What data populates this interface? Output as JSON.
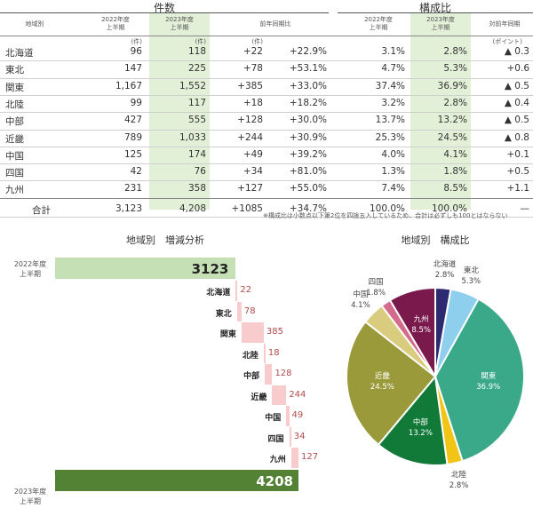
{
  "table": {
    "title_count": "件数",
    "title_share": "構成比",
    "headers": {
      "region": "地域別",
      "fy2022": [
        "2022年度",
        "上半期"
      ],
      "fy2023": [
        "2023年度",
        "上半期"
      ],
      "yoy": "前年同期比",
      "share2022": [
        "2022年度",
        "上半期"
      ],
      "share2023": [
        "2023年度",
        "上半期"
      ],
      "share_yoy": "対前年同期"
    },
    "units": {
      "u2022": "(件)",
      "u2023": "(件)",
      "udiff": "(件)",
      "upoint": "(ポイント)"
    },
    "rows": [
      {
        "region": "北海道",
        "c2022": "96",
        "c2023": "118",
        "diff": "+22",
        "pct": "+22.9%",
        "s2022": "3.1%",
        "s2023": "2.8%",
        "spt": "▲ 0.3"
      },
      {
        "region": "東北",
        "c2022": "147",
        "c2023": "225",
        "diff": "+78",
        "pct": "+53.1%",
        "s2022": "4.7%",
        "s2023": "5.3%",
        "spt": "+0.6"
      },
      {
        "region": "関東",
        "c2022": "1,167",
        "c2023": "1,552",
        "diff": "+385",
        "pct": "+33.0%",
        "s2022": "37.4%",
        "s2023": "36.9%",
        "spt": "▲ 0.5"
      },
      {
        "region": "北陸",
        "c2022": "99",
        "c2023": "117",
        "diff": "+18",
        "pct": "+18.2%",
        "s2022": "3.2%",
        "s2023": "2.8%",
        "spt": "▲ 0.4"
      },
      {
        "region": "中部",
        "c2022": "427",
        "c2023": "555",
        "diff": "+128",
        "pct": "+30.0%",
        "s2022": "13.7%",
        "s2023": "13.2%",
        "spt": "▲ 0.5"
      },
      {
        "region": "近畿",
        "c2022": "789",
        "c2023": "1,033",
        "diff": "+244",
        "pct": "+30.9%",
        "s2022": "25.3%",
        "s2023": "24.5%",
        "spt": "▲ 0.8"
      },
      {
        "region": "中国",
        "c2022": "125",
        "c2023": "174",
        "diff": "+49",
        "pct": "+39.2%",
        "s2022": "4.0%",
        "s2023": "4.1%",
        "spt": "+0.1"
      },
      {
        "region": "四国",
        "c2022": "42",
        "c2023": "76",
        "diff": "+34",
        "pct": "+81.0%",
        "s2022": "1.3%",
        "s2023": "1.8%",
        "spt": "+0.5"
      },
      {
        "region": "九州",
        "c2022": "231",
        "c2023": "358",
        "diff": "+127",
        "pct": "+55.0%",
        "s2022": "7.4%",
        "s2023": "8.5%",
        "spt": "+1.1"
      }
    ],
    "total": {
      "region": "合計",
      "c2022": "3,123",
      "c2023": "4,208",
      "diff": "+1085",
      "pct": "+34.7%",
      "s2022": "100.0%",
      "s2023": "100.0%",
      "spt": "—"
    },
    "note": "※構成比は小数点以下第2位を四捨五入しているため、合計は必ずしも100とはならない"
  },
  "chart_data": [
    {
      "type": "bar",
      "subtype": "waterfall",
      "title": "地域別　増減分析",
      "start": {
        "label": [
          "2022年度",
          "上半期"
        ],
        "value": 3123,
        "display": "3123"
      },
      "end": {
        "label": [
          "2023年度",
          "上半期"
        ],
        "value": 4208,
        "display": "4208"
      },
      "categories": [
        "北海道",
        "東北",
        "関東",
        "北陸",
        "中部",
        "近畿",
        "中国",
        "四国",
        "九州"
      ],
      "values": [
        22,
        78,
        385,
        18,
        128,
        244,
        49,
        34,
        127
      ],
      "colors": {
        "start": "#c5e0b4",
        "end": "#548235",
        "delta": "#f8cbcc",
        "label": "#b24b4b"
      }
    },
    {
      "type": "pie",
      "title": "地域別　構成比",
      "slices": [
        {
          "name": "北海道",
          "value": 2.8,
          "label": "2.8%",
          "color": "#2e2a72"
        },
        {
          "name": "東北",
          "value": 5.3,
          "label": "5.3%",
          "color": "#8ecfee"
        },
        {
          "name": "関東",
          "value": 36.9,
          "label": "36.9%",
          "color": "#3aa98a"
        },
        {
          "name": "北陸",
          "value": 2.8,
          "label": "2.8%",
          "color": "#f2c416"
        },
        {
          "name": "中部",
          "value": 13.2,
          "label": "13.2%",
          "color": "#127a38"
        },
        {
          "name": "近畿",
          "value": 24.5,
          "label": "24.5%",
          "color": "#9b9a3a"
        },
        {
          "name": "中国",
          "value": 4.1,
          "label": "4.1%",
          "color": "#d9cc7f"
        },
        {
          "name": "四国",
          "value": 1.8,
          "label": "1.8%",
          "color": "#d36c8c"
        },
        {
          "name": "九州",
          "value": 8.5,
          "label": "8.5%",
          "color": "#7a1a4c"
        }
      ]
    }
  ]
}
